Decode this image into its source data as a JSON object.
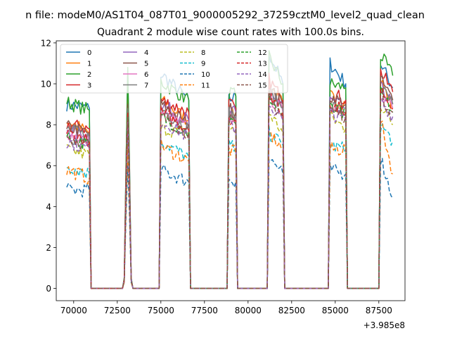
{
  "chart_data": {
    "type": "line",
    "suptitle": "n file: modeM0/AS1T04_087T01_9000005292_37259cztM0_level2_quad_clean",
    "title": "Quadrant 2 module wise count rates with 100.0s bins.",
    "xlabel": "",
    "ylabel": "",
    "x_offset_label": "+3.985e8",
    "xlim": [
      69000,
      89000
    ],
    "ylim": [
      -0.6,
      12.1
    ],
    "xticks": [
      70000,
      72500,
      75000,
      77500,
      80000,
      82500,
      85000,
      87500
    ],
    "xtick_labels": [
      "70000",
      "72500",
      "75000",
      "77500",
      "80000",
      "82500",
      "85000",
      "87500"
    ],
    "yticks": [
      0,
      2,
      4,
      6,
      8,
      10,
      12
    ],
    "ytick_labels": [
      "0",
      "2",
      "4",
      "6",
      "8",
      "10",
      "12"
    ],
    "grid": false,
    "legend": {
      "placement": "top-left",
      "columns": 4
    },
    "x": [
      69600,
      70900,
      71000,
      72800,
      72900,
      73000,
      73100,
      73200,
      73300,
      73400,
      74900,
      75000,
      76600,
      76700,
      78800,
      78900,
      79300,
      79400,
      81100,
      81200,
      82000,
      82100,
      84600,
      84700,
      85600,
      85700,
      87500,
      87600,
      88300
    ],
    "series": [
      {
        "name": "0",
        "color": "#1f77b4",
        "dash": "",
        "values": [
          9.0,
          8.8,
          0,
          0,
          0.5,
          6.0,
          10.6,
          6.0,
          0.5,
          0,
          0,
          10.5,
          9.2,
          0,
          0,
          9.2,
          9.4,
          0,
          0,
          11.5,
          10.0,
          0,
          0,
          11.0,
          10.0,
          0,
          0,
          11.0,
          9.8
        ]
      },
      {
        "name": "1",
        "color": "#ff7f0e",
        "dash": "",
        "values": [
          8.2,
          7.6,
          0,
          0,
          0.4,
          5.5,
          9.6,
          5.5,
          0.4,
          0,
          0,
          9.2,
          8.2,
          0,
          0,
          8.6,
          8.4,
          0,
          0,
          10.0,
          9.0,
          0,
          0,
          9.4,
          9.0,
          0,
          0,
          10.2,
          8.8
        ]
      },
      {
        "name": "2",
        "color": "#2ca02c",
        "dash": "",
        "values": [
          9.1,
          8.7,
          0,
          0,
          0.5,
          6.0,
          10.8,
          6.0,
          0.5,
          0,
          0,
          10.1,
          9.2,
          0,
          0,
          9.6,
          9.4,
          0,
          0,
          11.3,
          10.0,
          0,
          0,
          10.0,
          9.8,
          0,
          0,
          11.4,
          10.4
        ]
      },
      {
        "name": "3",
        "color": "#d62728",
        "dash": "",
        "values": [
          8.0,
          7.8,
          0,
          0,
          0.4,
          5.5,
          9.0,
          5.5,
          0.4,
          0,
          0,
          9.2,
          8.6,
          0,
          0,
          9.0,
          8.8,
          0,
          0,
          10.2,
          9.2,
          0,
          0,
          9.6,
          9.2,
          0,
          0,
          10.6,
          9.6
        ]
      },
      {
        "name": "4",
        "color": "#9467bd",
        "dash": "",
        "values": [
          7.8,
          7.4,
          0,
          0,
          0.4,
          5.0,
          8.8,
          5.0,
          0.4,
          0,
          0,
          9.0,
          8.2,
          0,
          0,
          8.6,
          8.6,
          0,
          0,
          9.6,
          9.0,
          0,
          0,
          9.2,
          8.8,
          0,
          0,
          9.8,
          9.0
        ]
      },
      {
        "name": "5",
        "color": "#8c564b",
        "dash": "",
        "values": [
          7.9,
          7.6,
          0,
          0,
          0.4,
          5.2,
          9.0,
          5.2,
          0.4,
          0,
          0,
          9.0,
          8.0,
          0,
          0,
          8.8,
          8.6,
          0,
          0,
          9.8,
          9.0,
          0,
          0,
          9.4,
          9.0,
          0,
          0,
          10.2,
          9.2
        ]
      },
      {
        "name": "6",
        "color": "#e377c2",
        "dash": "",
        "values": [
          7.6,
          7.2,
          0,
          0,
          0.4,
          5.0,
          8.6,
          5.0,
          0.4,
          0,
          0,
          8.6,
          7.8,
          0,
          0,
          8.4,
          8.4,
          0,
          0,
          9.4,
          8.6,
          0,
          0,
          9.0,
          8.6,
          0,
          0,
          9.6,
          8.8
        ]
      },
      {
        "name": "7",
        "color": "#7f7f7f",
        "dash": "",
        "values": [
          7.8,
          7.4,
          0,
          0,
          0.4,
          5.2,
          8.8,
          5.2,
          0.4,
          0,
          0,
          8.8,
          7.8,
          0,
          0,
          8.6,
          8.4,
          0,
          0,
          9.6,
          8.8,
          0,
          0,
          9.0,
          8.6,
          0,
          0,
          9.8,
          9.0
        ]
      },
      {
        "name": "8",
        "color": "#bcbd22",
        "dash": "6,3",
        "values": [
          6.8,
          6.5,
          0,
          0,
          0.4,
          4.5,
          8.0,
          4.5,
          0.4,
          0,
          0,
          7.8,
          7.6,
          0,
          0,
          7.8,
          7.6,
          0,
          0,
          8.6,
          7.6,
          0,
          0,
          8.4,
          7.8,
          0,
          0,
          9.0,
          8.0
        ]
      },
      {
        "name": "9",
        "color": "#17becf",
        "dash": "6,3",
        "values": [
          6.0,
          5.6,
          0,
          0,
          0.3,
          4.0,
          7.2,
          4.0,
          0.3,
          0,
          0,
          7.2,
          6.4,
          0,
          0,
          7.0,
          6.8,
          0,
          0,
          7.6,
          7.0,
          0,
          0,
          7.0,
          6.8,
          0,
          0,
          8.0,
          7.2
        ]
      },
      {
        "name": "10",
        "color": "#1f77b4",
        "dash": "6,3",
        "values": [
          4.8,
          4.8,
          0,
          0,
          0.3,
          3.5,
          6.0,
          3.5,
          0.3,
          0,
          0,
          5.8,
          5.2,
          0,
          0,
          5.4,
          5.2,
          0,
          0,
          6.4,
          5.6,
          0,
          0,
          5.8,
          5.6,
          0,
          0,
          6.4,
          4.4
        ]
      },
      {
        "name": "11",
        "color": "#ff7f0e",
        "dash": "6,3",
        "values": [
          5.8,
          5.4,
          0,
          0,
          0.3,
          4.0,
          7.0,
          4.0,
          0.3,
          0,
          0,
          7.0,
          6.2,
          0,
          0,
          6.8,
          6.6,
          0,
          0,
          7.6,
          6.8,
          0,
          0,
          6.8,
          6.8,
          0,
          0,
          8.2,
          5.6
        ]
      },
      {
        "name": "12",
        "color": "#2ca02c",
        "dash": "6,3",
        "values": [
          7.4,
          7.0,
          0,
          0,
          0.4,
          5.0,
          8.4,
          5.0,
          0.4,
          0,
          0,
          8.4,
          7.6,
          0,
          0,
          8.2,
          8.0,
          0,
          0,
          9.4,
          8.4,
          0,
          0,
          8.8,
          8.4,
          0,
          0,
          9.6,
          8.6
        ]
      },
      {
        "name": "13",
        "color": "#d62728",
        "dash": "6,3",
        "values": [
          7.6,
          7.2,
          0,
          0,
          0.4,
          5.0,
          8.6,
          5.0,
          0.4,
          0,
          0,
          8.6,
          7.8,
          0,
          0,
          8.4,
          8.2,
          0,
          0,
          9.6,
          8.6,
          0,
          0,
          9.0,
          8.6,
          0,
          0,
          9.8,
          8.8
        ]
      },
      {
        "name": "14",
        "color": "#9467bd",
        "dash": "6,3",
        "values": [
          7.2,
          6.8,
          0,
          0,
          0.4,
          4.8,
          8.2,
          4.8,
          0.4,
          0,
          0,
          8.2,
          7.4,
          0,
          0,
          8.0,
          7.8,
          0,
          0,
          9.0,
          8.2,
          0,
          0,
          8.6,
          8.2,
          0,
          0,
          9.2,
          8.4
        ]
      },
      {
        "name": "15",
        "color": "#8c564b",
        "dash": "6,3",
        "values": [
          7.4,
          7.0,
          0,
          0,
          0.4,
          4.8,
          8.4,
          4.8,
          0.4,
          0,
          0,
          8.4,
          7.6,
          0,
          0,
          8.2,
          8.0,
          0,
          0,
          9.2,
          8.4,
          0,
          0,
          8.8,
          8.4,
          0,
          0,
          9.4,
          8.6
        ]
      }
    ]
  }
}
